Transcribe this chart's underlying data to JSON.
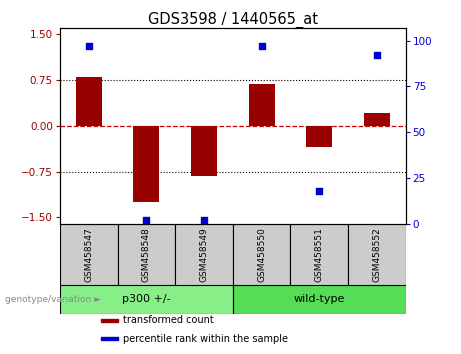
{
  "title": "GDS3598 / 1440565_at",
  "samples": [
    "GSM458547",
    "GSM458548",
    "GSM458549",
    "GSM458550",
    "GSM458551",
    "GSM458552"
  ],
  "bar_values": [
    0.8,
    -1.25,
    -0.82,
    0.68,
    -0.35,
    0.22
  ],
  "percentile_values": [
    97,
    2,
    2,
    97,
    18,
    92
  ],
  "ylim_left": [
    -1.6,
    1.6
  ],
  "ylim_right": [
    0,
    106.67
  ],
  "yticks_left": [
    -1.5,
    -0.75,
    0,
    0.75,
    1.5
  ],
  "yticks_right": [
    0,
    25,
    50,
    75,
    100
  ],
  "bar_color": "#990000",
  "scatter_color": "#0000cc",
  "grid_color": "#000000",
  "zero_line_color": "#cc0000",
  "gray_color": "#cccccc",
  "groups": [
    {
      "label": "p300 +/-",
      "start": 0,
      "end": 2,
      "color": "#88ee88"
    },
    {
      "label": "wild-type",
      "start": 3,
      "end": 5,
      "color": "#55dd55"
    }
  ],
  "group_label": "genotype/variation",
  "legend_items": [
    {
      "color": "#990000",
      "label": "transformed count"
    },
    {
      "color": "#0000cc",
      "label": "percentile rank within the sample"
    }
  ],
  "tick_label_fontsize": 7.5,
  "title_fontsize": 10.5,
  "sample_fontsize": 6.5,
  "group_fontsize": 8,
  "legend_fontsize": 7
}
